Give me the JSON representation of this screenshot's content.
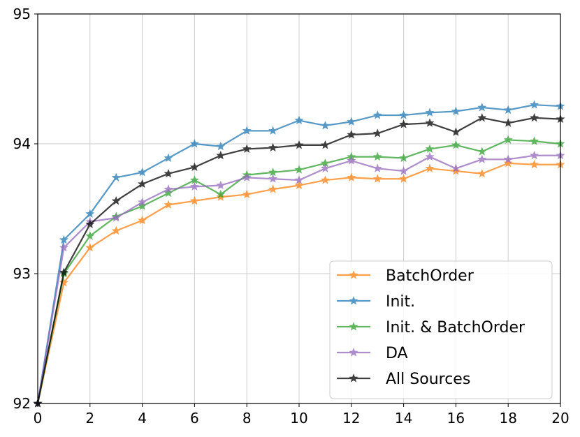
{
  "chart_data": {
    "type": "line",
    "title": "",
    "xlabel": "",
    "ylabel": "",
    "xlim": [
      0,
      20
    ],
    "ylim": [
      92,
      95
    ],
    "xticks": [
      0,
      2,
      4,
      6,
      8,
      10,
      12,
      14,
      16,
      18,
      20
    ],
    "yticks": [
      92,
      93,
      94,
      95
    ],
    "grid": true,
    "legend_position": "lower-right",
    "marker": "star",
    "x": [
      0,
      1,
      2,
      3,
      4,
      5,
      6,
      7,
      8,
      9,
      10,
      11,
      12,
      13,
      14,
      15,
      16,
      17,
      18,
      19,
      20
    ],
    "series": [
      {
        "name": "BatchOrder",
        "color": "#ff7f0e",
        "values": [
          92.0,
          92.93,
          93.2,
          93.33,
          93.41,
          93.53,
          93.56,
          93.59,
          93.61,
          93.65,
          93.68,
          93.72,
          93.74,
          93.73,
          93.73,
          93.81,
          93.79,
          93.77,
          93.85,
          93.84,
          93.84
        ]
      },
      {
        "name": "Init.",
        "color": "#1f77b4",
        "values": [
          92.0,
          93.26,
          93.46,
          93.74,
          93.78,
          93.89,
          94.0,
          93.98,
          94.1,
          94.1,
          94.18,
          94.14,
          94.17,
          94.22,
          94.22,
          94.24,
          94.25,
          94.28,
          94.26,
          94.3,
          94.29
        ]
      },
      {
        "name": "Init. & BatchOrder",
        "color": "#2ca02c",
        "values": [
          92.0,
          93.0,
          93.29,
          93.44,
          93.52,
          93.62,
          93.72,
          93.61,
          93.76,
          93.78,
          93.8,
          93.85,
          93.9,
          93.9,
          93.89,
          93.96,
          93.99,
          93.94,
          94.03,
          94.02,
          94.0
        ]
      },
      {
        "name": "DA",
        "color": "#9467bd",
        "values": [
          92.0,
          93.2,
          93.4,
          93.43,
          93.55,
          93.65,
          93.67,
          93.68,
          93.74,
          93.73,
          93.72,
          93.81,
          93.87,
          93.81,
          93.79,
          93.9,
          93.81,
          93.88,
          93.88,
          93.91,
          93.91
        ]
      },
      {
        "name": "All Sources",
        "color": "#000000",
        "values": [
          92.0,
          93.01,
          93.38,
          93.56,
          93.69,
          93.77,
          93.82,
          93.91,
          93.96,
          93.97,
          93.99,
          93.99,
          94.07,
          94.08,
          94.15,
          94.16,
          94.09,
          94.2,
          94.16,
          94.2,
          94.19
        ]
      }
    ]
  }
}
